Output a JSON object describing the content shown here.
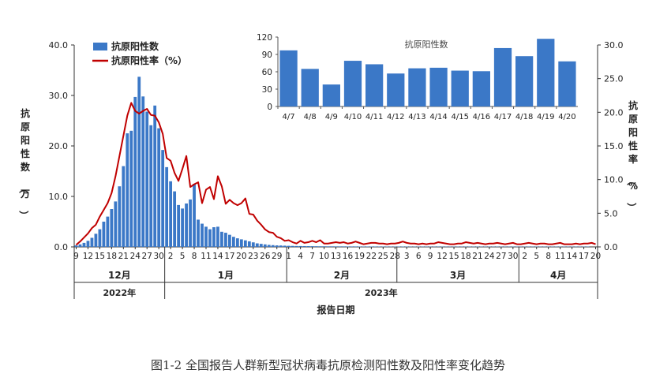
{
  "chart_data": [
    {
      "type": "bar+line",
      "xlabel": "报告日期",
      "ylabel_left": "抗原阳性数（万）",
      "ylabel_right": "抗原阳性率（%）",
      "ylim_left": [
        0,
        40
      ],
      "ylim_right": [
        0,
        30
      ],
      "yticks_left": [
        "0.0",
        "10.0",
        "20.0",
        "30.0",
        "40.0"
      ],
      "yticks_right": [
        "0.0",
        "5.0",
        "10.0",
        "15.0",
        "20.0",
        "25.0",
        "30.0"
      ],
      "legend": {
        "position": "top-left",
        "bar_label": "抗原阳性数",
        "line_label": "抗原阳性率（%）"
      },
      "x_tick_labels": [
        "9",
        "12",
        "15",
        "18",
        "21",
        "24",
        "27",
        "30",
        "2",
        "5",
        "8",
        "11",
        "14",
        "17",
        "20",
        "23",
        "26",
        "29",
        "1",
        "4",
        "7",
        "10",
        "13",
        "16",
        "19",
        "22",
        "25",
        "28",
        "3",
        "6",
        "9",
        "12",
        "15",
        "18",
        "21",
        "24",
        "27",
        "30",
        "2",
        "5",
        "8",
        "11",
        "14",
        "17",
        "20"
      ],
      "months": [
        "12月",
        "1月",
        "2月",
        "3月",
        "4月"
      ],
      "years": [
        "2022年",
        "2023年"
      ],
      "series": [
        {
          "name": "抗原阳性数",
          "axis": "left",
          "color": "#3b78c7",
          "start_date": "2022-12-09",
          "values": [
            0.3,
            0.5,
            0.8,
            1.2,
            1.8,
            2.6,
            3.5,
            5.0,
            6.0,
            7.5,
            9.0,
            12.0,
            16.0,
            22.5,
            23.0,
            29.7,
            33.7,
            29.8,
            26.8,
            24.1,
            28.0,
            23.5,
            19.2,
            15.8,
            13.0,
            11.0,
            8.3,
            7.6,
            8.6,
            9.4,
            12.5,
            5.4,
            4.6,
            4.0,
            3.5,
            3.9,
            4.0,
            3.0,
            2.8,
            2.4,
            2.0,
            1.7,
            1.5,
            1.3,
            1.1,
            0.9,
            0.7,
            0.6,
            0.5,
            0.4,
            0.35,
            0.3,
            0.28,
            0.25,
            0.22,
            0.2,
            0.18,
            0.17,
            0.16,
            0.15,
            0.14,
            0.13,
            0.12,
            0.12,
            0.11,
            0.11,
            0.1,
            0.1,
            0.1,
            0.09,
            0.09,
            0.09,
            0.08,
            0.08,
            0.08,
            0.08,
            0.08,
            0.08,
            0.07,
            0.07,
            0.07,
            0.07,
            0.07,
            0.07,
            0.07,
            0.06,
            0.06,
            0.06,
            0.06,
            0.06,
            0.06,
            0.06,
            0.06,
            0.06,
            0.06,
            0.06,
            0.06,
            0.06,
            0.06,
            0.06,
            0.06,
            0.06,
            0.06,
            0.06,
            0.06,
            0.06,
            0.06,
            0.06,
            0.06,
            0.06,
            0.06,
            0.06,
            0.06,
            0.06,
            0.06,
            0.06,
            0.06,
            0.06,
            0.06,
            0.06,
            0.06,
            0.06,
            0.06,
            0.06,
            0.06,
            0.06,
            0.06,
            0.06,
            0.06,
            0.06,
            0.06
          ]
        },
        {
          "name": "抗原阳性率（%）",
          "axis": "right",
          "color": "#c00000",
          "start_date": "2022-12-09",
          "values": [
            0.3,
            0.8,
            1.4,
            2.0,
            2.8,
            3.3,
            4.5,
            5.5,
            6.5,
            8.0,
            10.5,
            13.5,
            16.5,
            19.5,
            21.4,
            20.2,
            19.8,
            20.2,
            20.5,
            19.6,
            19.5,
            18.5,
            16.8,
            13.2,
            12.8,
            11.0,
            9.8,
            11.6,
            13.5,
            8.9,
            9.3,
            9.6,
            6.5,
            8.5,
            8.9,
            7.1,
            10.5,
            9.0,
            6.4,
            7.0,
            6.5,
            6.2,
            6.5,
            7.2,
            4.9,
            4.8,
            3.9,
            3.3,
            2.6,
            2.2,
            2.1,
            1.5,
            1.3,
            0.9,
            1.0,
            0.7,
            0.5,
            0.9,
            0.6,
            0.7,
            0.9,
            0.7,
            1.0,
            0.5,
            0.5,
            0.6,
            0.7,
            0.6,
            0.7,
            0.5,
            0.6,
            0.8,
            0.6,
            0.4,
            0.5,
            0.6,
            0.6,
            0.5,
            0.5,
            0.4,
            0.5,
            0.5,
            0.6,
            0.8,
            0.6,
            0.5,
            0.5,
            0.4,
            0.5,
            0.4,
            0.5,
            0.5,
            0.7,
            0.6,
            0.5,
            0.4,
            0.4,
            0.5,
            0.5,
            0.7,
            0.6,
            0.5,
            0.6,
            0.5,
            0.4,
            0.5,
            0.5,
            0.6,
            0.5,
            0.4,
            0.5,
            0.6,
            0.4,
            0.4,
            0.5,
            0.6,
            0.5,
            0.4,
            0.5,
            0.5,
            0.4,
            0.4,
            0.5,
            0.6,
            0.4,
            0.4,
            0.4,
            0.5,
            0.4,
            0.5,
            0.5,
            0.6,
            0.4,
            0.4
          ]
        }
      ]
    },
    {
      "type": "bar",
      "title": "抗原阳性数",
      "categories": [
        "4/7",
        "4/8",
        "4/9",
        "4/10",
        "4/11",
        "4/12",
        "4/13",
        "4/14",
        "4/15",
        "4/16",
        "4/17",
        "4/18",
        "4/19",
        "4/20"
      ],
      "values": [
        97,
        65,
        38,
        79,
        73,
        57,
        66,
        67,
        62,
        61,
        101,
        87,
        117,
        78
      ],
      "ylim": [
        0,
        120
      ],
      "yticks": [
        "0",
        "30",
        "60",
        "90",
        "120"
      ],
      "color": "#3b78c7"
    }
  ],
  "caption": "图1-2  全国报告人群新型冠状病毒抗原检测阳性数及阳性率变化趋势"
}
